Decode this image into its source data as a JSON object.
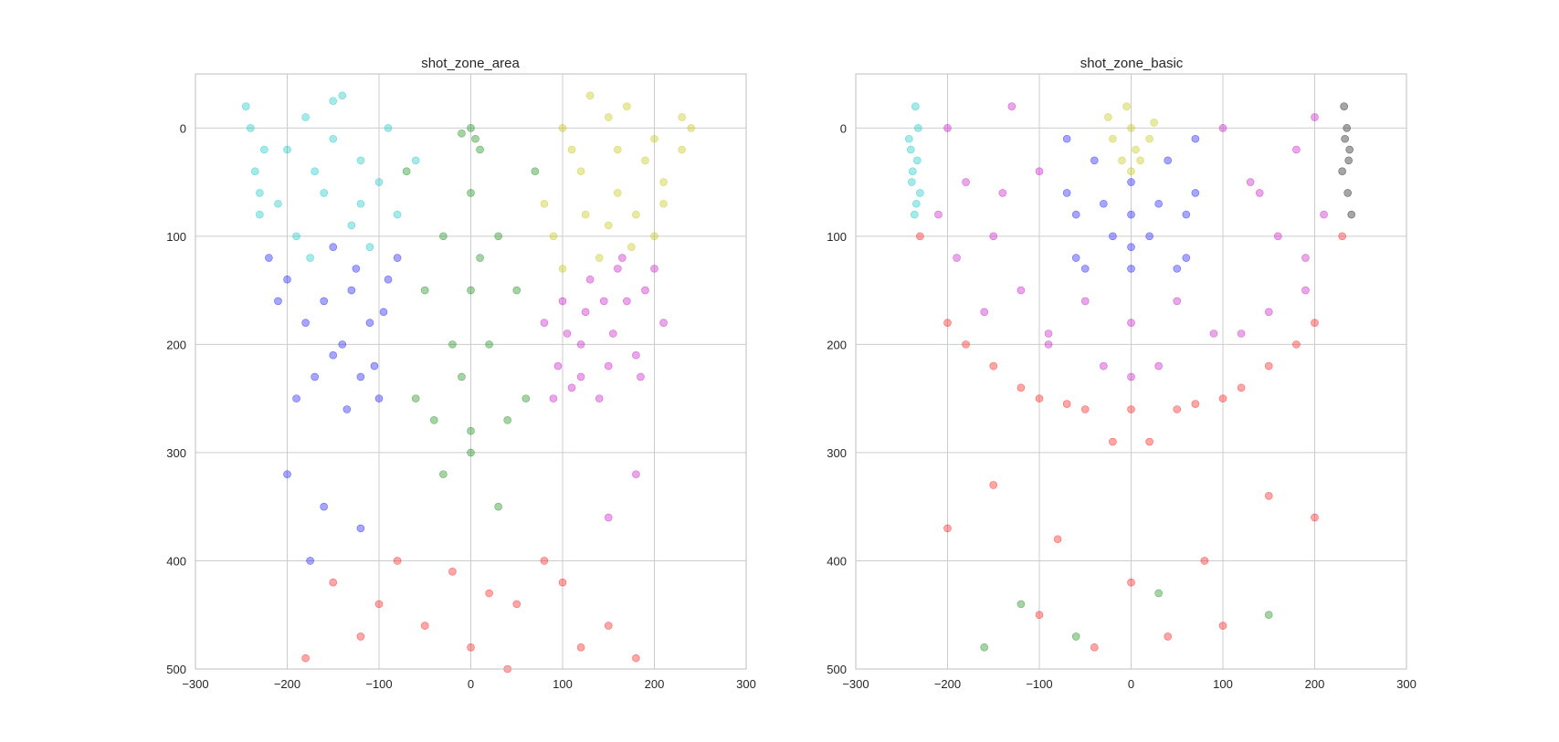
{
  "chart_data": [
    {
      "type": "scatter",
      "title": "shot_zone_area",
      "xlabel": "",
      "ylabel": "",
      "xlim": [
        -300,
        300
      ],
      "ylim": [
        500,
        -50
      ],
      "y_inverted": true,
      "grid": true,
      "xticks": [
        -300,
        -200,
        -100,
        0,
        100,
        200,
        300
      ],
      "yticks": [
        0,
        100,
        200,
        300,
        400,
        500
      ],
      "xtick_labels": [
        "−300",
        "−200",
        "−100",
        "0",
        "100",
        "200",
        "300"
      ],
      "ytick_labels": [
        "0",
        "100",
        "200",
        "300",
        "400",
        "500"
      ],
      "series": [
        {
          "color": "#00BFBF",
          "x": [
            -240,
            -235,
            -230,
            -245,
            -225,
            -180,
            -150,
            -120,
            -160,
            -130,
            -100,
            -200,
            -140,
            -90,
            -110,
            -170,
            -60,
            -210,
            -190,
            -80,
            -230,
            -150,
            -120,
            -175
          ],
          "y": [
            0,
            40,
            80,
            -20,
            20,
            -10,
            10,
            30,
            60,
            90,
            50,
            20,
            -30,
            0,
            110,
            40,
            30,
            70,
            100,
            80,
            60,
            -25,
            70,
            120
          ]
        },
        {
          "color": "#0000FF",
          "x": [
            -200,
            -180,
            -150,
            -120,
            -100,
            -160,
            -130,
            -90,
            -210,
            -140,
            -170,
            -110,
            -190,
            -220,
            -150,
            -125,
            -95,
            -135,
            -80,
            -105,
            -200,
            -160,
            -175,
            -120
          ],
          "y": [
            140,
            180,
            210,
            230,
            250,
            160,
            150,
            140,
            160,
            200,
            230,
            180,
            250,
            120,
            110,
            130,
            170,
            260,
            120,
            220,
            320,
            350,
            400,
            370
          ]
        },
        {
          "color": "#008000",
          "x": [
            0,
            5,
            -10,
            10,
            0,
            -30,
            30,
            -50,
            50,
            0,
            -20,
            20,
            -60,
            60,
            -40,
            40,
            0,
            -10,
            10,
            -70,
            70,
            0,
            -30,
            30
          ],
          "y": [
            0,
            10,
            5,
            20,
            60,
            100,
            100,
            150,
            150,
            150,
            200,
            200,
            250,
            250,
            270,
            270,
            280,
            230,
            120,
            40,
            40,
            300,
            320,
            350
          ]
        },
        {
          "color": "#BFBF00",
          "x": [
            100,
            150,
            200,
            230,
            120,
            160,
            180,
            90,
            140,
            210,
            170,
            110,
            240,
            130,
            190,
            80,
            150,
            200,
            100,
            230,
            175,
            125,
            160,
            210
          ],
          "y": [
            0,
            -10,
            10,
            20,
            40,
            60,
            80,
            100,
            120,
            50,
            -20,
            20,
            0,
            -30,
            30,
            70,
            90,
            100,
            130,
            -10,
            110,
            80,
            20,
            70
          ]
        },
        {
          "color": "#BF00BF",
          "x": [
            100,
            130,
            160,
            190,
            210,
            80,
            120,
            150,
            180,
            140,
            170,
            110,
            95,
            200,
            125,
            155,
            185,
            105,
            90,
            145,
            165,
            120,
            180,
            150
          ],
          "y": [
            160,
            140,
            130,
            150,
            180,
            180,
            200,
            220,
            210,
            250,
            160,
            240,
            220,
            130,
            170,
            190,
            230,
            190,
            250,
            160,
            120,
            230,
            320,
            360
          ]
        },
        {
          "color": "#FF0000",
          "x": [
            -150,
            -100,
            -50,
            0,
            50,
            100,
            150,
            -80,
            80,
            20,
            -120,
            120,
            -180,
            180,
            -20,
            40
          ],
          "y": [
            420,
            440,
            460,
            480,
            440,
            420,
            460,
            400,
            400,
            430,
            470,
            480,
            490,
            490,
            410,
            500
          ]
        }
      ]
    },
    {
      "type": "scatter",
      "title": "shot_zone_basic",
      "xlabel": "",
      "ylabel": "",
      "xlim": [
        -300,
        300
      ],
      "ylim": [
        500,
        -50
      ],
      "y_inverted": true,
      "grid": true,
      "xticks": [
        -300,
        -200,
        -100,
        0,
        100,
        200,
        300
      ],
      "yticks": [
        0,
        100,
        200,
        300,
        400,
        500
      ],
      "xtick_labels": [
        "−300",
        "−200",
        "−100",
        "0",
        "100",
        "200",
        "300"
      ],
      "ytick_labels": [
        "0",
        "100",
        "200",
        "300",
        "400",
        "500"
      ],
      "series": [
        {
          "color": "#00BFBF",
          "x": [
            -235,
            -232,
            -240,
            -238,
            -230,
            -236,
            -242,
            -233,
            -239,
            -234
          ],
          "y": [
            -20,
            0,
            20,
            40,
            60,
            80,
            10,
            30,
            50,
            70
          ]
        },
        {
          "color": "#BF00BF",
          "x": [
            -200,
            -180,
            -150,
            -120,
            -100,
            -160,
            -130,
            -90,
            100,
            130,
            160,
            190,
            200,
            120,
            150,
            180,
            -50,
            0,
            50,
            -30,
            30,
            -190,
            190,
            90,
            -90,
            -140,
            140,
            -210,
            210,
            0
          ],
          "y": [
            0,
            50,
            100,
            150,
            40,
            170,
            -20,
            200,
            0,
            50,
            100,
            150,
            -10,
            190,
            170,
            20,
            160,
            180,
            160,
            220,
            220,
            120,
            120,
            190,
            190,
            60,
            60,
            80,
            80,
            230
          ]
        },
        {
          "color": "#0000FF",
          "x": [
            -70,
            -40,
            0,
            40,
            70,
            -60,
            60,
            -20,
            20,
            0,
            -50,
            50,
            0,
            -70,
            70,
            -30,
            30,
            0,
            -60,
            60
          ],
          "y": [
            10,
            30,
            50,
            30,
            10,
            80,
            80,
            100,
            100,
            130,
            130,
            130,
            80,
            60,
            60,
            70,
            70,
            110,
            120,
            120
          ]
        },
        {
          "color": "#BFBF00",
          "x": [
            0,
            -20,
            20,
            -10,
            10,
            0,
            -25,
            25,
            5,
            -5
          ],
          "y": [
            0,
            10,
            10,
            30,
            30,
            40,
            -10,
            -5,
            20,
            -20
          ]
        },
        {
          "color": "#000000",
          "x": [
            232,
            235,
            238,
            230,
            236,
            240,
            233,
            237
          ],
          "y": [
            -20,
            0,
            20,
            40,
            60,
            80,
            10,
            30
          ]
        },
        {
          "color": "#FF0000",
          "x": [
            -230,
            -200,
            -150,
            -100,
            -50,
            0,
            50,
            100,
            150,
            200,
            230,
            -180,
            180,
            -120,
            120,
            -70,
            70,
            -20,
            20,
            -150,
            150,
            -80,
            80,
            0,
            -200,
            200,
            -100,
            100,
            40,
            -40
          ],
          "y": [
            100,
            180,
            220,
            250,
            260,
            260,
            260,
            250,
            220,
            180,
            100,
            200,
            200,
            240,
            240,
            255,
            255,
            290,
            290,
            330,
            340,
            380,
            400,
            420,
            370,
            360,
            450,
            460,
            470,
            480
          ]
        },
        {
          "color": "#008000",
          "x": [
            -160,
            -120,
            30,
            150,
            -60
          ],
          "y": [
            480,
            440,
            430,
            450,
            470
          ]
        }
      ]
    }
  ]
}
